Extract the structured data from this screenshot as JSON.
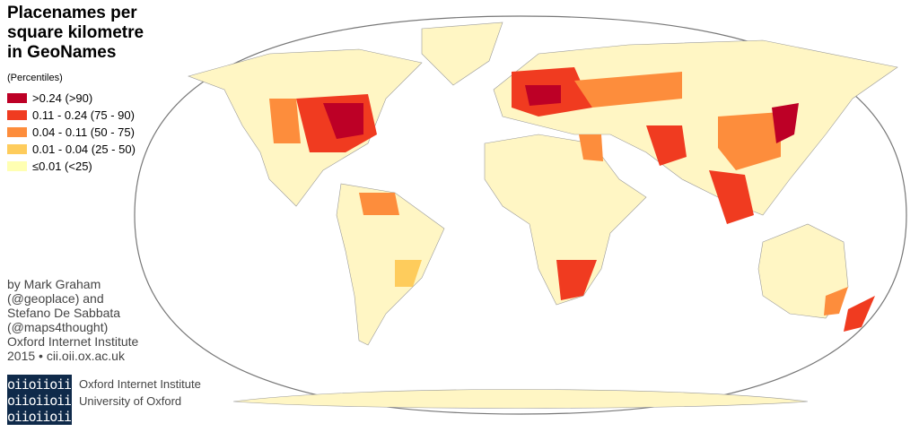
{
  "header": {
    "title_lines": [
      "Placenames per",
      "square kilometre",
      "in GeoNames"
    ],
    "subtitle": "(Percentiles)"
  },
  "legend": {
    "items": [
      {
        "label": ">0.24 (>90)",
        "color": "#bd0026"
      },
      {
        "label": "0.11 - 0.24 (75 - 90)",
        "color": "#f03b20"
      },
      {
        "label": "0.04 - 0.11 (50 - 75)",
        "color": "#fd8d3c"
      },
      {
        "label": "0.01 - 0.04 (25 - 50)",
        "color": "#fecc5c"
      },
      {
        "label": "≤0.01 (<25)",
        "color": "#ffffb2"
      }
    ]
  },
  "credits": {
    "lines": [
      "by Mark Graham",
      "(@geoplace) and",
      "Stefano De Sabbata",
      "(@maps4thought)",
      "Oxford Internet Institute",
      "2015 • cii.oii.ox.ac.uk"
    ]
  },
  "logo": {
    "rows": [
      "oiioiioii",
      "oiioiioii",
      "oiioiioii"
    ],
    "institution": [
      "Oxford Internet Institute",
      "University of Oxford"
    ]
  }
}
